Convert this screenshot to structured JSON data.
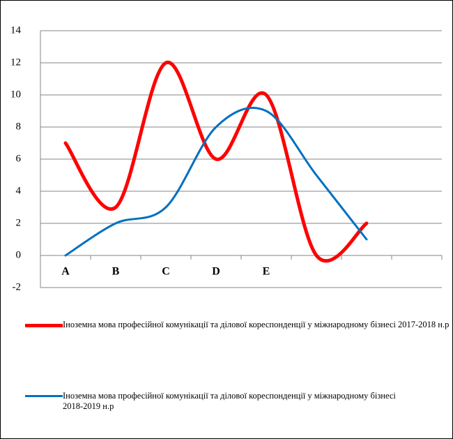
{
  "chart_data": {
    "type": "line",
    "categories": [
      "A",
      "B",
      "C",
      "D",
      "E",
      null,
      null,
      null
    ],
    "series": [
      {
        "name": "Іноземна мова професійної комунікації та ділової кореспонденції у міжнародному бізнесі 2017-2018 н.р",
        "color": "#ff0000",
        "values": [
          7,
          3,
          12,
          6,
          10,
          0,
          2,
          null
        ]
      },
      {
        "name": "Іноземна мова професійної комунікації та ділової кореспонденції у міжнародному бізнесі\n2018-2019 н.р",
        "color": "#0070c0",
        "values": [
          0,
          2,
          3,
          8,
          9,
          5,
          1,
          null
        ]
      }
    ],
    "ylim": [
      -2,
      14
    ],
    "yticks": [
      -2,
      0,
      2,
      4,
      6,
      8,
      10,
      12,
      14
    ],
    "grid": true,
    "smooth": true,
    "legend": "bottom"
  }
}
